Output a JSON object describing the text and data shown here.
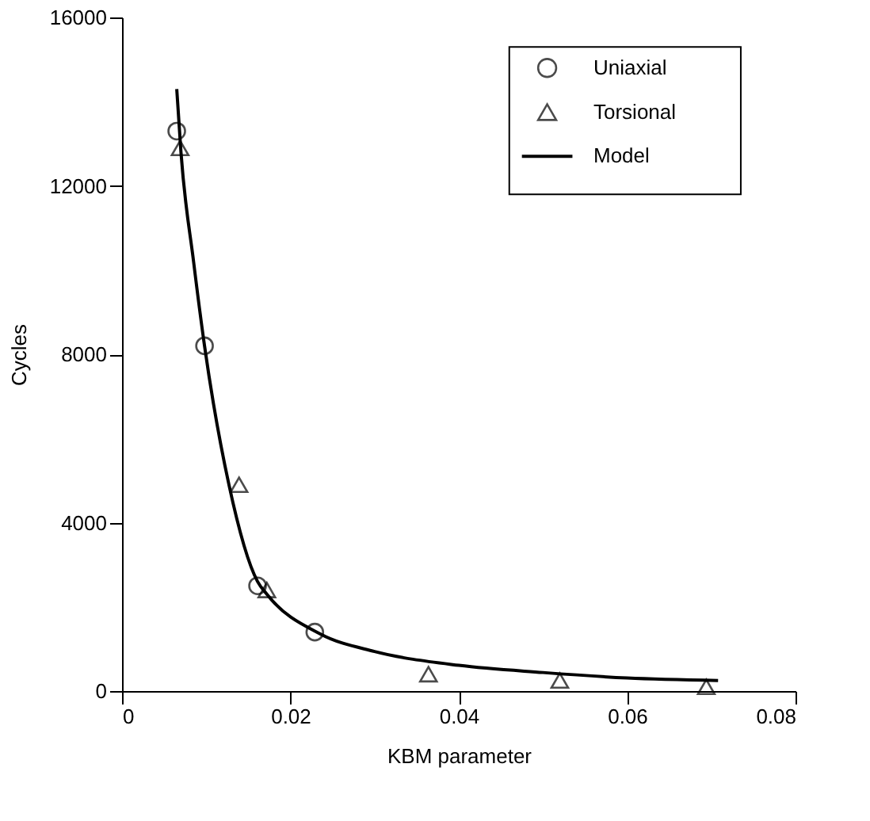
{
  "chart_data": {
    "type": "scatter",
    "xlabel": "KBM parameter",
    "ylabel": "Cycles",
    "xlim": [
      0,
      0.08
    ],
    "ylim": [
      0,
      16000
    ],
    "xticks": [
      0,
      0.02,
      0.04,
      0.06,
      0.08
    ],
    "yticks": [
      0,
      4000,
      8000,
      12000,
      16000
    ],
    "grid": false,
    "legend": "top right",
    "series": [
      {
        "name": "Uniaxial",
        "marker": "circle",
        "color": "#000000",
        "x": [
          0.0065,
          0.0098,
          0.0161,
          0.0229
        ],
        "values": [
          13300,
          8200,
          2500,
          1400
        ]
      },
      {
        "name": "Torsional",
        "marker": "triangle",
        "color": "#000000",
        "x": [
          0.0069,
          0.0139,
          0.0172,
          0.0364,
          0.052,
          0.0694
        ],
        "values": [
          12900,
          4900,
          2400,
          400,
          250,
          100
        ]
      },
      {
        "name": "Model",
        "type": "line",
        "marker": "none",
        "line_style": "solid",
        "color": "#000000",
        "x": [
          0.0065,
          0.007,
          0.0085,
          0.0098,
          0.0127,
          0.0161,
          0.0172,
          0.0236,
          0.03,
          0.04,
          0.05,
          0.06,
          0.0708
        ],
        "values": [
          14300,
          12800,
          10200,
          8200,
          4900,
          2600,
          2300,
          1350,
          940,
          610,
          440,
          310,
          250
        ]
      }
    ]
  }
}
